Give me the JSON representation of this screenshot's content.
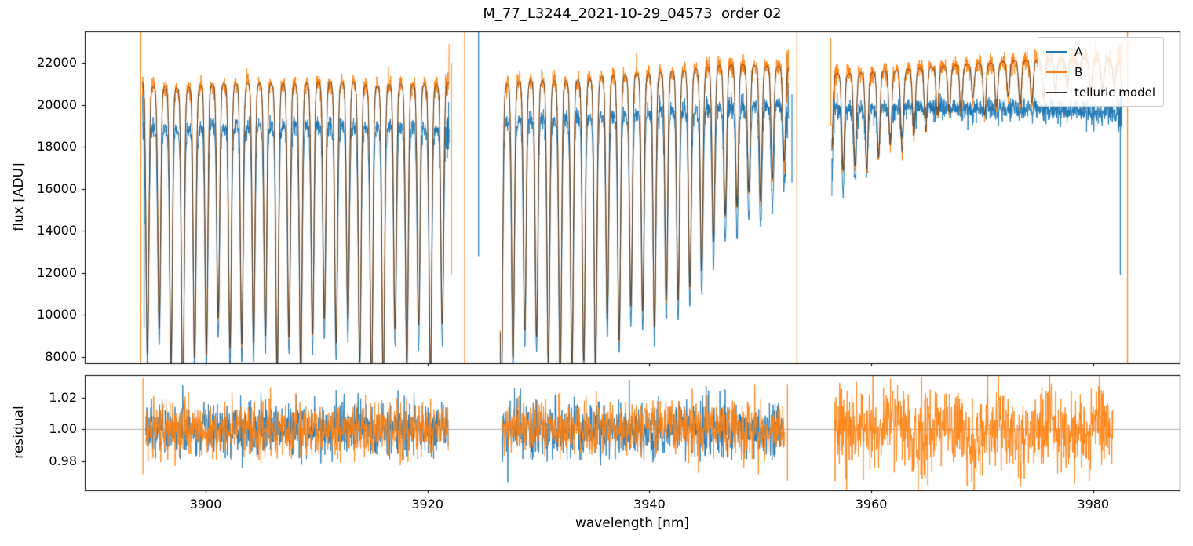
{
  "figure": {
    "title": "M_77_L3244_2021-10-29_04573  order 02",
    "xlabel": "wavelength [nm]",
    "ylabel_main": "flux [ADU]",
    "ylabel_residual": "residual"
  },
  "chart_data": {
    "type": "line",
    "title": "M_77_L3244_2021-10-29_04573  order 02",
    "xlabel": "wavelength [nm]",
    "background": "#ffffff",
    "grid": false,
    "legend_position": "upper right",
    "xlim": [
      3889.1,
      3987.8
    ],
    "xticks": [
      3900,
      3920,
      3940,
      3960,
      3980
    ],
    "panels": [
      {
        "name": "flux",
        "ylabel": "flux [ADU]",
        "ylim": [
          7700,
          23500
        ],
        "yticks": [
          8000,
          10000,
          12000,
          14000,
          16000,
          18000,
          20000,
          22000
        ]
      },
      {
        "name": "residual",
        "ylabel": "residual",
        "ylim": [
          0.962,
          1.034
        ],
        "yticks": [
          0.98,
          1.0,
          1.02
        ]
      }
    ],
    "legend": [
      {
        "label": "A",
        "color": "#1f77b4"
      },
      {
        "label": "B",
        "color": "#ff7f0e"
      },
      {
        "label": "telluric model",
        "color": "#333333"
      }
    ],
    "series_colors": {
      "A": "#1f77b4",
      "B": "#ff7f0e",
      "model": "#333333"
    },
    "segments": [
      {
        "x0": 3894.3,
        "x1": 3921.95,
        "extra_A_spikes": false
      },
      {
        "x0": 3926.55,
        "x1": 3952.55,
        "extra_A_spikes": false
      },
      {
        "x0": 3956.45,
        "x1": 3982.6,
        "extra_A_spikes": true
      }
    ],
    "baselines": {
      "A": [
        [
          3894,
          19600
        ],
        [
          3897,
          19750
        ],
        [
          3903,
          19850
        ],
        [
          3910,
          19850
        ],
        [
          3916,
          19800
        ],
        [
          3922,
          19700
        ],
        [
          3926.5,
          20050
        ],
        [
          3931,
          20250
        ],
        [
          3936,
          20350
        ],
        [
          3941,
          20400
        ],
        [
          3946,
          20450
        ],
        [
          3950,
          20400
        ],
        [
          3952.6,
          20300
        ],
        [
          3956.5,
          20150
        ],
        [
          3960,
          20050
        ],
        [
          3964,
          19950
        ],
        [
          3970,
          19900
        ],
        [
          3976,
          19850
        ],
        [
          3980,
          19700
        ],
        [
          3982.6,
          19600
        ]
      ],
      "B": [
        [
          3894,
          21600
        ],
        [
          3897,
          21800
        ],
        [
          3903,
          21900
        ],
        [
          3910,
          21950
        ],
        [
          3916,
          21900
        ],
        [
          3922,
          21850
        ],
        [
          3926.5,
          21950
        ],
        [
          3931,
          22100
        ],
        [
          3936,
          22250
        ],
        [
          3941,
          22350
        ],
        [
          3945,
          22450
        ],
        [
          3948,
          22400
        ],
        [
          3952.6,
          22150
        ],
        [
          3956.5,
          21800
        ],
        [
          3960,
          21850
        ],
        [
          3964,
          21950
        ],
        [
          3968,
          22050
        ],
        [
          3972,
          22200
        ],
        [
          3976,
          22300
        ],
        [
          3979,
          22300
        ],
        [
          3982.6,
          22150
        ]
      ]
    },
    "telluric_comb": {
      "start": 3894.75,
      "spacing": 1.063,
      "sigma_nm": 0.12,
      "wing_gamma_nm": 0.3,
      "wing_fraction": 0.12,
      "depth_profile": [
        [
          3894,
          0.62
        ],
        [
          3904,
          0.64
        ],
        [
          3912,
          0.6
        ],
        [
          3922,
          0.58
        ],
        [
          3926,
          0.66
        ],
        [
          3934,
          0.64
        ],
        [
          3938,
          0.6
        ],
        [
          3939.5,
          0.58
        ],
        [
          3944,
          0.45
        ],
        [
          3948,
          0.33
        ],
        [
          3952.5,
          0.21
        ],
        [
          3956.5,
          0.22
        ],
        [
          3960,
          0.19
        ],
        [
          3964,
          0.15
        ],
        [
          3968,
          0.11
        ],
        [
          3972,
          0.085
        ],
        [
          3976,
          0.065
        ],
        [
          3982.6,
          0.05
        ]
      ],
      "depth_jitter": [
        [
          3894,
          0.1
        ],
        [
          3938,
          0.1
        ],
        [
          3940,
          0.03
        ],
        [
          3982.6,
          0.03
        ]
      ]
    },
    "A_comb_scale": [
      [
        3894,
        1.0
      ],
      [
        3952.6,
        1.0
      ],
      [
        3956.5,
        1.0
      ],
      [
        3958.5,
        0.85
      ],
      [
        3961,
        0.55
      ],
      [
        3963.5,
        0.25
      ],
      [
        3966,
        0.12
      ],
      [
        3982.6,
        0.08
      ]
    ],
    "noise": {
      "main_sigma_frac": 0.011
    },
    "residual_center_line": 1.0,
    "residual_segments": [
      {
        "x0": 3894.6,
        "x1": 3921.9,
        "has_A": true,
        "sigma_A": 0.0085,
        "sigma_B": 0.0085,
        "wobble": 0
      },
      {
        "x0": 3926.7,
        "x1": 3952.2,
        "has_A": true,
        "sigma_A": 0.0085,
        "sigma_B": 0.0085,
        "wobble": 0
      },
      {
        "x0": 3956.7,
        "x1": 3981.8,
        "has_A": false,
        "sigma_A": 0,
        "sigma_B": 0.013,
        "wobble": 0.004
      }
    ],
    "edge_spikes": [
      {
        "s": "B",
        "x": 3894.15,
        "y0": 23500,
        "y1": 7700
      },
      {
        "s": "A",
        "x": 3894.45,
        "y0": 20700,
        "y1": 9400
      },
      {
        "s": "B",
        "x": 3922.15,
        "y0": 22000,
        "y1": 11900
      },
      {
        "s": "B",
        "x": 3923.35,
        "y0": 23500,
        "y1": 7700
      },
      {
        "s": "A",
        "x": 3924.6,
        "y0": 23500,
        "y1": 12800
      },
      {
        "s": "A",
        "x": 3952.85,
        "y0": 20500,
        "y1": 16300
      },
      {
        "s": "B",
        "x": 3953.3,
        "y0": 23500,
        "y1": 7700
      },
      {
        "s": "B",
        "x": 3956.35,
        "y0": 23200,
        "y1": 19000
      },
      {
        "s": "A",
        "x": 3982.45,
        "y0": 20200,
        "y1": 11900
      },
      {
        "s": "B",
        "x": 3983.1,
        "y0": 23500,
        "y1": 7700
      }
    ],
    "residual_edge_spikes": [
      {
        "s": "B",
        "x": 3894.35,
        "y0": 1.032,
        "y1": 0.972
      },
      {
        "s": "B",
        "x": 3952.45,
        "y0": 1.028,
        "y1": 0.968
      }
    ]
  }
}
